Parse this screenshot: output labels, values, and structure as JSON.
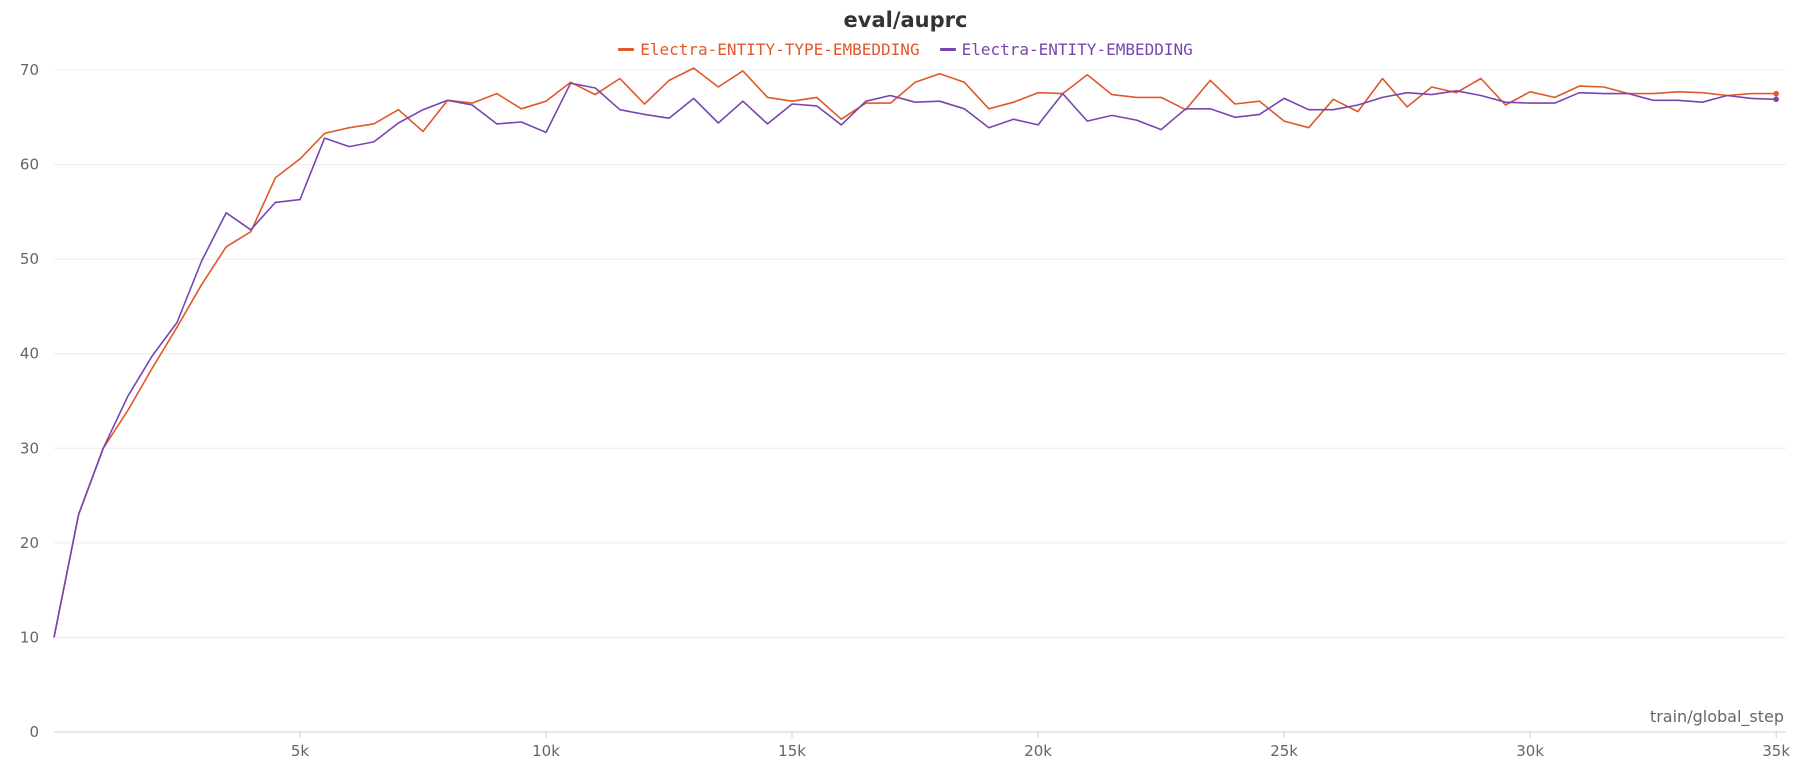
{
  "chart_data": {
    "type": "line",
    "title": "eval/auprc",
    "xlabel": "train/global_step",
    "ylabel": "",
    "xlim": [
      0,
      35200
    ],
    "ylim": [
      0,
      70
    ],
    "x_ticks": [
      5000,
      10000,
      15000,
      20000,
      25000,
      30000,
      35000
    ],
    "x_tick_labels": [
      "5k",
      "10k",
      "15k",
      "20k",
      "25k",
      "30k",
      "35k"
    ],
    "y_ticks": [
      0,
      10,
      20,
      30,
      40,
      50,
      60,
      70
    ],
    "y_tick_labels": [
      "0",
      "10",
      "20",
      "30",
      "40",
      "50",
      "60",
      "70"
    ],
    "grid": "horizontal",
    "legend_position": "top-center",
    "x": [
      0,
      500,
      1000,
      1500,
      2000,
      2500,
      3000,
      3500,
      4000,
      4500,
      5000,
      5500,
      6000,
      6500,
      7000,
      7500,
      8000,
      8500,
      9000,
      9500,
      10000,
      10500,
      11000,
      11500,
      12000,
      12500,
      13000,
      13500,
      14000,
      14500,
      15000,
      15500,
      16000,
      16500,
      17000,
      17500,
      18000,
      18500,
      19000,
      19500,
      20000,
      20500,
      21000,
      21500,
      22000,
      22500,
      23000,
      23500,
      24000,
      24500,
      25000,
      25500,
      26000,
      26500,
      27000,
      27500,
      28000,
      28500,
      29000,
      29500,
      30000,
      30500,
      31000,
      31500,
      32000,
      32500,
      33000,
      33500,
      34000,
      34500,
      35000
    ],
    "series": [
      {
        "name": "Electra-ENTITY-TYPE-EMBEDDING",
        "color": "#e0582b",
        "values": [
          10.0,
          23.0,
          30.0,
          34.0,
          38.5,
          42.8,
          47.3,
          51.3,
          52.9,
          58.6,
          60.6,
          63.3,
          63.9,
          64.3,
          65.8,
          63.5,
          66.8,
          66.5,
          67.5,
          65.9,
          66.7,
          68.7,
          67.4,
          69.1,
          66.4,
          68.9,
          70.2,
          68.2,
          69.9,
          67.1,
          66.7,
          67.1,
          64.8,
          66.5,
          66.5,
          68.7,
          69.6,
          68.7,
          65.9,
          66.6,
          67.6,
          67.5,
          69.5,
          67.4,
          67.1,
          67.1,
          65.8,
          68.9,
          66.4,
          66.7,
          64.6,
          63.9,
          66.9,
          65.6,
          69.1,
          66.1,
          68.2,
          67.6,
          69.1,
          66.3,
          67.7,
          67.1,
          68.3,
          68.2,
          67.5,
          67.5,
          67.7,
          67.6,
          67.3,
          67.5,
          67.5
        ]
      },
      {
        "name": "Electra-ENTITY-EMBEDDING",
        "color": "#7845b0",
        "values": [
          10.0,
          23.0,
          30.0,
          35.5,
          39.8,
          43.3,
          49.8,
          54.9,
          53.1,
          56.0,
          56.3,
          62.8,
          61.9,
          62.4,
          64.4,
          65.8,
          66.8,
          66.3,
          64.3,
          64.5,
          63.4,
          68.6,
          68.1,
          65.8,
          65.3,
          64.9,
          67.0,
          64.4,
          66.7,
          64.3,
          66.4,
          66.2,
          64.2,
          66.7,
          67.3,
          66.6,
          66.7,
          65.9,
          63.9,
          64.8,
          64.2,
          67.5,
          64.6,
          65.2,
          64.7,
          63.7,
          65.9,
          65.9,
          65.0,
          65.3,
          67.0,
          65.8,
          65.8,
          66.3,
          67.1,
          67.6,
          67.4,
          67.8,
          67.3,
          66.6,
          66.5,
          66.5,
          67.6,
          67.5,
          67.5,
          66.8,
          66.8,
          66.6,
          67.3,
          67.0,
          66.9
        ]
      }
    ]
  }
}
